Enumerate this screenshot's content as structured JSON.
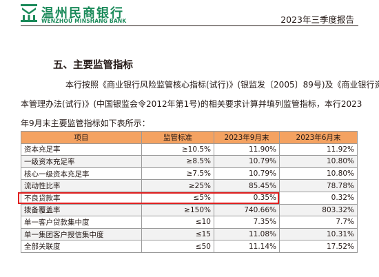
{
  "header": {
    "bank_name_cn": "温州民商银行",
    "bank_name_en": "WENZHOU MINSHANG BANK",
    "report_title": "2023年三季度报告",
    "brand_color": "#1b8a5a"
  },
  "section": {
    "title": "五、主要监管指标",
    "paragraph_lines": [
      "本行按照《商业银行风险监管核心指标(试行)》(银监发〔2005〕89号)及《商业银行资",
      "本管理办法(试行)》(中国银监会令2012年第1号)的相关要求计算并填列监管指标，本行2023",
      "年9月末主要监管指标如下表所示："
    ]
  },
  "table": {
    "header_color": "#f4a261",
    "highlight_color": "#e02020",
    "highlighted_item": "不良贷款率",
    "columns": [
      "项目",
      "监管标准",
      "2023年9月末",
      "2023年6月末"
    ],
    "rows": [
      {
        "item": "资本充足率",
        "standard": "≥10.5%",
        "sep2023": "11.90%",
        "jun2023": "11.92%"
      },
      {
        "item": "一级资本充足率",
        "standard": "≥8.5%",
        "sep2023": "10.79%",
        "jun2023": "10.80%"
      },
      {
        "item": "核心一级资本充足率",
        "standard": "≥7.5%",
        "sep2023": "10.79%",
        "jun2023": "10.80%"
      },
      {
        "item": "流动性比率",
        "standard": "≥25%",
        "sep2023": "85.45%",
        "jun2023": "78.78%"
      },
      {
        "item": "不良贷款率",
        "standard": "≤5%",
        "sep2023": "0.35%",
        "jun2023": "0.32%"
      },
      {
        "item": "拨备覆盖率",
        "standard": "≥150%",
        "sep2023": "740.66%",
        "jun2023": "803.32%"
      },
      {
        "item": "单一客户贷款集中度",
        "standard": "≤10",
        "sep2023": "7.35%",
        "jun2023": "7.7%"
      },
      {
        "item": "单一集团客户授信集中度",
        "standard": "≤15",
        "sep2023": "11.08%",
        "jun2023": "10.31%"
      },
      {
        "item": "全部关联度",
        "standard": "≤50",
        "sep2023": "11.14%",
        "jun2023": "17.52%"
      }
    ]
  }
}
